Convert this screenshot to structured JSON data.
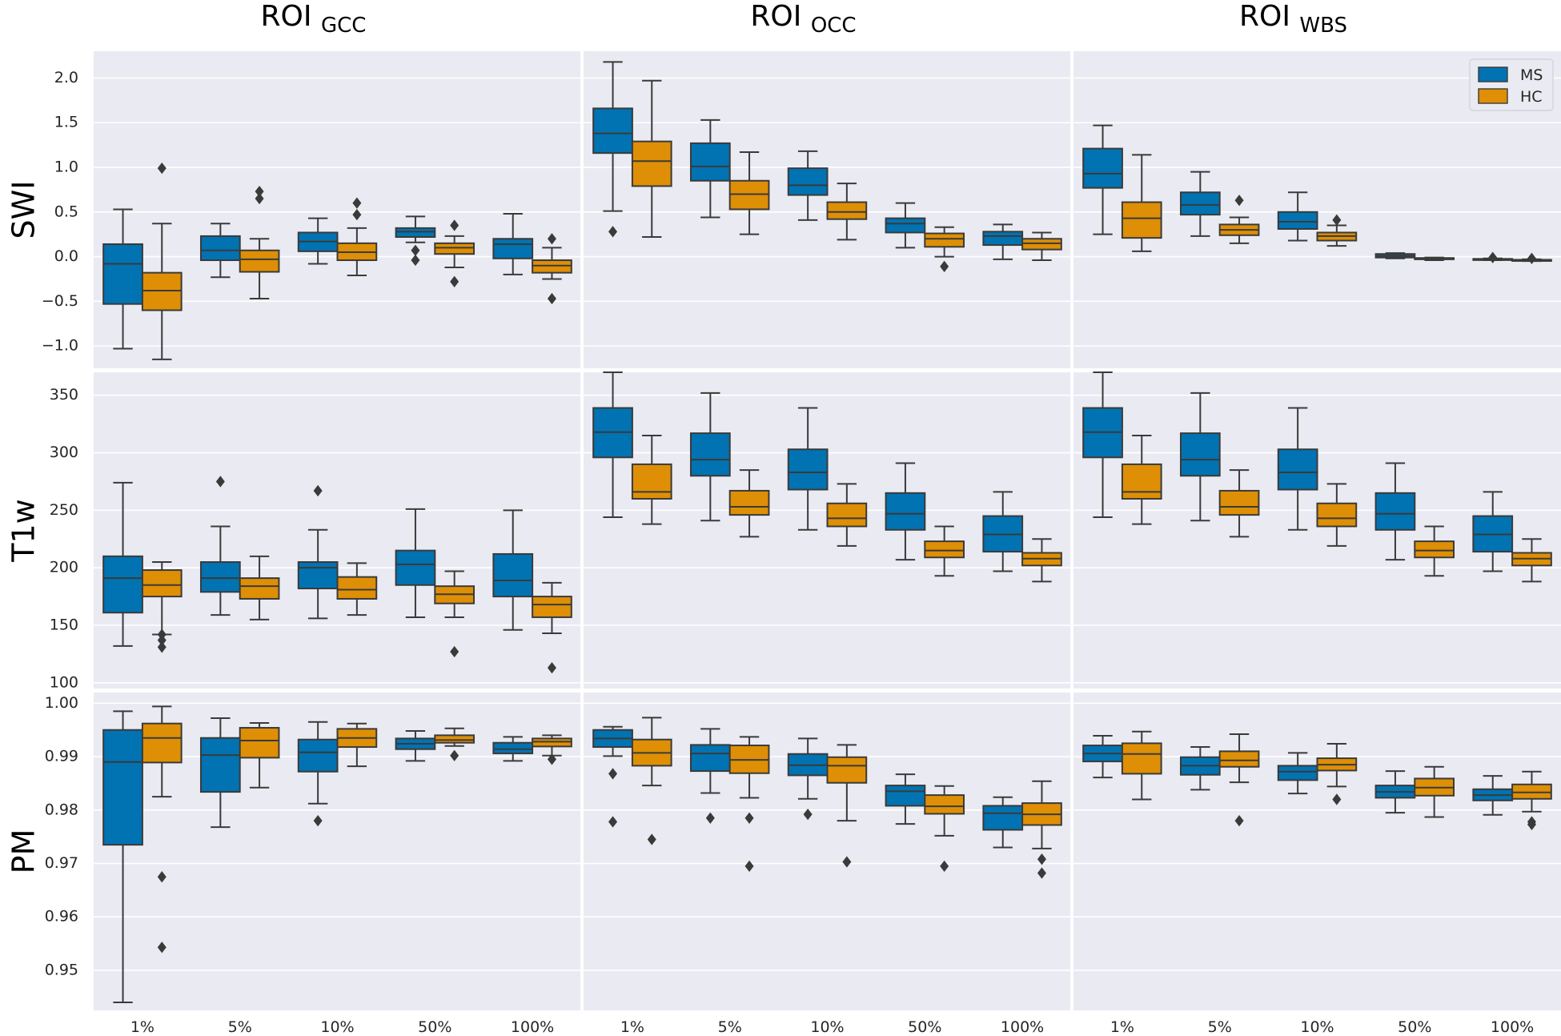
{
  "chart_data": {
    "type": "box",
    "title": "",
    "columns": [
      {
        "main": "ROI",
        "sub": "GCC"
      },
      {
        "main": "ROI",
        "sub": "OCC"
      },
      {
        "main": "ROI",
        "sub": "WBS"
      }
    ],
    "categories": [
      "1%",
      "5%",
      "10%",
      "50%",
      "100%"
    ],
    "legend": {
      "position": "top-right",
      "entries": [
        "MS",
        "HC"
      ]
    },
    "colors": {
      "MS": "#0173b2",
      "HC": "#de8f05",
      "background": "#eaeaf2",
      "grid": "#ffffff",
      "line": "#3a3a3a"
    },
    "rows": [
      {
        "label": "SWI",
        "ylim": [
          -1.25,
          2.3
        ],
        "ticks": [
          2.0,
          1.5,
          1.0,
          0.5,
          0.0,
          -0.5,
          -1.0
        ],
        "tick_labels": [
          "2.0",
          "1.5",
          "1.0",
          "0.5",
          "0.0",
          "−0.5",
          "−1.0"
        ],
        "panels": [
          {
            "MS": [
              [
                -1.03,
                -0.53,
                -0.08,
                0.14,
                0.53,
                []
              ],
              [
                -0.23,
                -0.04,
                0.07,
                0.23,
                0.37,
                []
              ],
              [
                -0.08,
                0.06,
                0.17,
                0.27,
                0.43,
                []
              ],
              [
                0.16,
                0.22,
                0.28,
                0.32,
                0.45,
                [
                  0.07,
                  -0.04
                ]
              ],
              [
                -0.2,
                -0.02,
                0.14,
                0.2,
                0.48,
                []
              ]
            ],
            "HC": [
              [
                -1.15,
                -0.6,
                -0.38,
                -0.18,
                0.37,
                [
                  0.99
                ]
              ],
              [
                -0.47,
                -0.17,
                -0.03,
                0.07,
                0.2,
                [
                  0.73,
                  0.65
                ]
              ],
              [
                -0.21,
                -0.04,
                0.05,
                0.15,
                0.32,
                [
                  0.6,
                  0.47
                ]
              ],
              [
                -0.12,
                0.03,
                0.1,
                0.15,
                0.23,
                [
                  0.35,
                  -0.28
                ]
              ],
              [
                -0.25,
                -0.18,
                -0.1,
                -0.04,
                0.1,
                [
                  0.2,
                  -0.47
                ]
              ]
            ]
          },
          {
            "MS": [
              [
                0.51,
                1.16,
                1.38,
                1.66,
                2.18,
                [
                  0.28
                ]
              ],
              [
                0.44,
                0.85,
                1.01,
                1.27,
                1.53,
                []
              ],
              [
                0.41,
                0.69,
                0.8,
                0.99,
                1.18,
                []
              ],
              [
                0.1,
                0.27,
                0.37,
                0.43,
                0.6,
                []
              ],
              [
                -0.03,
                0.13,
                0.23,
                0.28,
                0.36,
                []
              ]
            ],
            "HC": [
              [
                0.22,
                0.79,
                1.07,
                1.29,
                1.97,
                []
              ],
              [
                0.25,
                0.53,
                0.7,
                0.85,
                1.17,
                []
              ],
              [
                0.19,
                0.42,
                0.5,
                0.61,
                0.82,
                []
              ],
              [
                0.0,
                0.11,
                0.2,
                0.26,
                0.33,
                [
                  -0.11
                ]
              ],
              [
                -0.04,
                0.08,
                0.15,
                0.2,
                0.27,
                []
              ]
            ]
          },
          {
            "MS": [
              [
                0.25,
                0.77,
                0.93,
                1.21,
                1.47,
                []
              ],
              [
                0.23,
                0.47,
                0.58,
                0.72,
                0.95,
                []
              ],
              [
                0.18,
                0.31,
                0.39,
                0.5,
                0.72,
                []
              ],
              [
                -0.02,
                -0.01,
                0.01,
                0.03,
                0.04,
                []
              ],
              [
                -0.04,
                -0.035,
                -0.03,
                -0.025,
                -0.02,
                [
                  -0.01
                ]
              ]
            ],
            "HC": [
              [
                0.06,
                0.21,
                0.43,
                0.61,
                1.14,
                []
              ],
              [
                0.15,
                0.24,
                0.3,
                0.36,
                0.44,
                [
                  0.63
                ]
              ],
              [
                0.12,
                0.18,
                0.23,
                0.27,
                0.35,
                [
                  0.41
                ]
              ],
              [
                -0.04,
                -0.03,
                -0.02,
                -0.015,
                -0.01,
                []
              ],
              [
                -0.05,
                -0.045,
                -0.04,
                -0.035,
                -0.03,
                [
                  -0.02
                ]
              ]
            ]
          }
        ]
      },
      {
        "label": "T1w",
        "ylim": [
          95,
          370
        ],
        "ticks": [
          350,
          300,
          250,
          200,
          150,
          100
        ],
        "tick_labels": [
          "350",
          "300",
          "250",
          "200",
          "150",
          "100"
        ],
        "panels": [
          {
            "MS": [
              [
                132,
                161,
                191,
                210,
                274,
                []
              ],
              [
                159,
                179,
                191,
                205,
                236,
                [
                  275
                ]
              ],
              [
                156,
                182,
                200,
                205,
                233,
                [
                  267
                ]
              ],
              [
                157,
                185,
                203,
                215,
                251,
                []
              ],
              [
                146,
                175,
                189,
                212,
                250,
                []
              ]
            ],
            "HC": [
              [
                142,
                175,
                185,
                198,
                205,
                [
                  142,
                  137,
                  131
                ]
              ],
              [
                155,
                173,
                184,
                191,
                210,
                []
              ],
              [
                159,
                173,
                181,
                192,
                204,
                []
              ],
              [
                157,
                169,
                177,
                184,
                197,
                [
                  127
                ]
              ],
              [
                143,
                157,
                168,
                175,
                187,
                [
                  113
                ]
              ]
            ]
          },
          {
            "MS": [
              [
                244,
                296,
                318,
                339,
                370,
                []
              ],
              [
                241,
                280,
                294,
                317,
                352,
                []
              ],
              [
                233,
                268,
                283,
                303,
                339,
                []
              ],
              [
                207,
                233,
                247,
                265,
                291,
                []
              ],
              [
                197,
                214,
                229,
                245,
                266,
                []
              ]
            ],
            "HC": [
              [
                238,
                260,
                266,
                290,
                315,
                []
              ],
              [
                227,
                246,
                253,
                267,
                285,
                []
              ],
              [
                219,
                236,
                243,
                256,
                273,
                []
              ],
              [
                193,
                209,
                215,
                223,
                236,
                []
              ],
              [
                188,
                202,
                208,
                213,
                225,
                []
              ]
            ]
          },
          {
            "MS": [
              [
                244,
                296,
                318,
                339,
                370,
                []
              ],
              [
                241,
                280,
                294,
                317,
                352,
                []
              ],
              [
                233,
                268,
                283,
                303,
                339,
                []
              ],
              [
                207,
                233,
                247,
                265,
                291,
                []
              ],
              [
                197,
                214,
                229,
                245,
                266,
                []
              ]
            ],
            "HC": [
              [
                238,
                260,
                266,
                290,
                315,
                []
              ],
              [
                227,
                246,
                253,
                267,
                285,
                []
              ],
              [
                219,
                236,
                243,
                256,
                273,
                []
              ],
              [
                193,
                209,
                215,
                223,
                236,
                []
              ],
              [
                188,
                202,
                208,
                213,
                225,
                []
              ]
            ]
          }
        ]
      },
      {
        "label": "PM",
        "ylim": [
          0.9425,
          1.002
        ],
        "ticks": [
          1.0,
          0.99,
          0.98,
          0.97,
          0.96,
          0.95
        ],
        "tick_labels": [
          "1.00",
          "0.99",
          "0.98",
          "0.97",
          "0.96",
          "0.95"
        ],
        "panels": [
          {
            "MS": [
              [
                0.944,
                0.9735,
                0.989,
                0.995,
                0.9985,
                []
              ],
              [
                0.9768,
                0.9834,
                0.9903,
                0.9935,
                0.9972,
                []
              ],
              [
                0.9812,
                0.9872,
                0.9908,
                0.9932,
                0.9965,
                [
                  0.978
                ]
              ],
              [
                0.9892,
                0.9914,
                0.9924,
                0.9934,
                0.9948,
                []
              ],
              [
                0.9892,
                0.9906,
                0.9914,
                0.9926,
                0.9937,
                []
              ]
            ],
            "HC": [
              [
                0.9825,
                0.9889,
                0.9935,
                0.9962,
                0.9994,
                [
                  0.9675,
                  0.9543
                ]
              ],
              [
                0.9842,
                0.9898,
                0.993,
                0.9954,
                0.9963,
                []
              ],
              [
                0.9882,
                0.9918,
                0.9935,
                0.9952,
                0.9962,
                []
              ],
              [
                0.992,
                0.9926,
                0.9931,
                0.994,
                0.9953,
                [
                  0.9902
                ]
              ],
              [
                0.9902,
                0.9919,
                0.9928,
                0.9934,
                0.994,
                [
                  0.9895
                ]
              ]
            ]
          },
          {
            "MS": [
              [
                0.9901,
                0.9918,
                0.9934,
                0.995,
                0.9956,
                [
                  0.9868,
                  0.9778
                ]
              ],
              [
                0.9832,
                0.9873,
                0.9906,
                0.9922,
                0.9952,
                [
                  0.9785
                ]
              ],
              [
                0.9821,
                0.9865,
                0.9884,
                0.9905,
                0.9934,
                [
                  0.9792
                ]
              ],
              [
                0.9774,
                0.9808,
                0.9835,
                0.9846,
                0.9867,
                []
              ],
              [
                0.973,
                0.9763,
                0.9794,
                0.9808,
                0.9824,
                []
              ]
            ],
            "HC": [
              [
                0.9846,
                0.9883,
                0.9907,
                0.9932,
                0.9973,
                [
                  0.9745
                ]
              ],
              [
                0.9823,
                0.9869,
                0.9894,
                0.9921,
                0.9937,
                [
                  0.9785,
                  0.9695
                ]
              ],
              [
                0.978,
                0.9851,
                0.9883,
                0.9899,
                0.9922,
                [
                  0.9703
                ]
              ],
              [
                0.9752,
                0.9793,
                0.9807,
                0.9828,
                0.9845,
                [
                  0.9695
                ]
              ],
              [
                0.9728,
                0.9772,
                0.9792,
                0.9813,
                0.9854,
                [
                  0.9708,
                  0.9682
                ]
              ]
            ]
          },
          {
            "MS": [
              [
                0.9861,
                0.9891,
                0.9906,
                0.9921,
                0.9939,
                []
              ],
              [
                0.9838,
                0.9866,
                0.9883,
                0.9899,
                0.9918,
                []
              ],
              [
                0.9831,
                0.9856,
                0.9872,
                0.9883,
                0.9907,
                []
              ],
              [
                0.9795,
                0.9823,
                0.9834,
                0.9846,
                0.9873,
                []
              ],
              [
                0.9791,
                0.9818,
                0.9828,
                0.9839,
                0.9864,
                []
              ]
            ],
            "HC": [
              [
                0.982,
                0.9868,
                0.9905,
                0.9925,
                0.9947,
                []
              ],
              [
                0.9852,
                0.9881,
                0.9893,
                0.991,
                0.9942,
                [
                  0.978
                ]
              ],
              [
                0.9844,
                0.9874,
                0.9885,
                0.9897,
                0.9924,
                [
                  0.982
                ]
              ],
              [
                0.9787,
                0.9827,
                0.9842,
                0.9859,
                0.9881,
                []
              ],
              [
                0.9797,
                0.9821,
                0.9833,
                0.9848,
                0.9872,
                [
                  0.9778,
                  0.9773
                ]
              ]
            ]
          }
        ]
      }
    ]
  }
}
